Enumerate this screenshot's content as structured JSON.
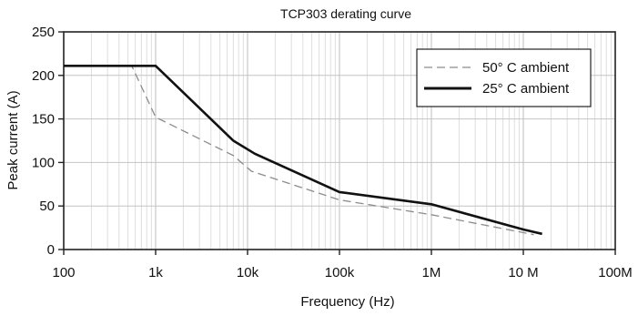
{
  "chart_data": {
    "type": "line",
    "title": "TCP303 derating curve",
    "xlabel": "Frequency  (Hz)",
    "ylabel": "Peak current (A)",
    "x_scale": "log",
    "xlim": [
      100,
      100000000
    ],
    "ylim": [
      0,
      250
    ],
    "x_ticks": [
      {
        "value": 100,
        "label": "100"
      },
      {
        "value": 1000,
        "label": "1k"
      },
      {
        "value": 10000,
        "label": "10k"
      },
      {
        "value": 100000,
        "label": "100k"
      },
      {
        "value": 1000000,
        "label": "1M"
      },
      {
        "value": 10000000,
        "label": "10 M"
      },
      {
        "value": 100000000,
        "label": "100M"
      }
    ],
    "y_ticks": [
      0,
      50,
      100,
      150,
      200,
      250
    ],
    "grid": true,
    "legend_position": "top-right",
    "series": [
      {
        "name": "50° C  ambient",
        "style": "dashed",
        "color": "#8c8c8c",
        "points": [
          [
            100,
            211
          ],
          [
            550,
            211
          ],
          [
            1000,
            152
          ],
          [
            7000,
            108
          ],
          [
            11000,
            90
          ],
          [
            100000,
            57
          ],
          [
            1000000,
            40
          ],
          [
            13000000,
            17
          ]
        ]
      },
      {
        "name": "25° C  ambient",
        "style": "solid",
        "color": "#111111",
        "points": [
          [
            100,
            211
          ],
          [
            1000,
            211
          ],
          [
            7000,
            125
          ],
          [
            12000,
            110
          ],
          [
            100000,
            66
          ],
          [
            1000000,
            52
          ],
          [
            10000000,
            23
          ],
          [
            16000000,
            18
          ]
        ]
      }
    ]
  }
}
